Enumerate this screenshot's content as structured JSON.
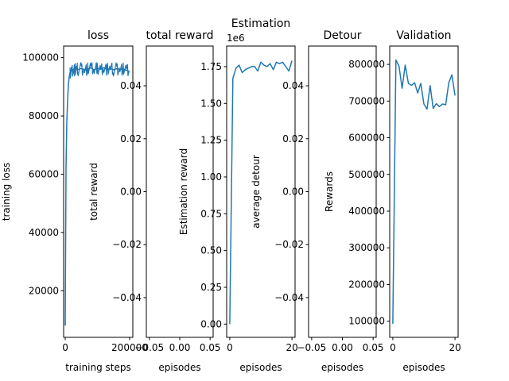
{
  "chart_data": [
    {
      "type": "line",
      "title": "loss",
      "xlabel": "training steps",
      "ylabel": "training loss",
      "xlim": [
        -5000,
        210000
      ],
      "ylim": [
        4000,
        104000
      ],
      "xticks": [
        0,
        200000
      ],
      "xtick_labels": [
        "0",
        "200000"
      ],
      "yticks": [
        20000,
        40000,
        60000,
        80000,
        100000
      ],
      "ytick_labels": [
        "20000",
        "40000",
        "60000",
        "80000",
        "100000"
      ],
      "grid": false,
      "x": [
        0,
        2500,
        5000,
        7500,
        10000,
        12500,
        15000,
        20000,
        25000,
        30000,
        35000,
        40000,
        50000,
        60000,
        70000,
        80000,
        90000,
        100000,
        110000,
        120000,
        130000,
        140000,
        150000,
        160000,
        170000,
        180000,
        190000,
        200000
      ],
      "values": [
        8000,
        62000,
        78000,
        86000,
        91000,
        93500,
        95000,
        95500,
        96000,
        95800,
        96200,
        95900,
        96300,
        95700,
        96100,
        96500,
        95800,
        96400,
        96000,
        96600,
        95900,
        96300,
        95800,
        96200,
        96000,
        96100,
        95700,
        95300
      ]
    },
    {
      "type": "line",
      "title": "total reward",
      "xlabel": "episodes",
      "ylabel": "total reward",
      "xlim": [
        -0.055,
        0.055
      ],
      "ylim": [
        -0.055,
        0.055
      ],
      "xticks": [
        -0.05,
        0.0,
        0.05
      ],
      "xtick_labels": [
        "−0.05",
        "0.00",
        "0.05"
      ],
      "yticks": [
        -0.04,
        -0.02,
        0.0,
        0.02,
        0.04
      ],
      "ytick_labels": [
        "−0.04",
        "−0.02",
        "0.00",
        "0.02",
        "0.04"
      ],
      "grid": false,
      "x": [],
      "values": []
    },
    {
      "type": "line",
      "title": "Estimation",
      "xlabel": "episodes",
      "ylabel": "Estimation reward",
      "offset_label": "1e6",
      "xlim": [
        -1,
        21
      ],
      "ylim": [
        -0.09,
        1.89
      ],
      "xticks": [
        0,
        20
      ],
      "xtick_labels": [
        "0",
        "20"
      ],
      "yticks": [
        0.0,
        0.25,
        0.5,
        0.75,
        1.0,
        1.25,
        1.5,
        1.75
      ],
      "ytick_labels": [
        "0.00",
        "0.25",
        "0.50",
        "0.75",
        "1.00",
        "1.25",
        "1.50",
        "1.75"
      ],
      "grid": false,
      "x": [
        0,
        1,
        2,
        3,
        4,
        5,
        6,
        7,
        8,
        9,
        10,
        11,
        12,
        13,
        14,
        15,
        16,
        17,
        18,
        19,
        20
      ],
      "values": [
        0.0,
        1.67,
        1.74,
        1.76,
        1.71,
        1.73,
        1.74,
        1.75,
        1.75,
        1.72,
        1.78,
        1.76,
        1.75,
        1.77,
        1.73,
        1.78,
        1.77,
        1.78,
        1.75,
        1.72,
        1.79
      ]
    },
    {
      "type": "line",
      "title": "Detour",
      "xlabel": "episodes",
      "ylabel": "average detour",
      "xlim": [
        -0.055,
        0.055
      ],
      "ylim": [
        -0.055,
        0.055
      ],
      "xticks": [
        -0.05,
        0.0,
        0.05
      ],
      "xtick_labels": [
        "−0.05",
        "0.00",
        "0.05"
      ],
      "yticks": [
        -0.04,
        -0.02,
        0.0,
        0.02,
        0.04
      ],
      "ytick_labels": [
        "−0.04",
        "−0.02",
        "0.00",
        "0.02",
        "0.04"
      ],
      "grid": false,
      "x": [],
      "values": []
    },
    {
      "type": "line",
      "title": "Validation",
      "xlabel": "episodes",
      "ylabel": "Rewards",
      "xlim": [
        -1,
        21
      ],
      "ylim": [
        56000,
        850000
      ],
      "xticks": [
        0,
        20
      ],
      "xtick_labels": [
        "0",
        "20"
      ],
      "yticks": [
        100000,
        200000,
        300000,
        400000,
        500000,
        600000,
        700000,
        800000
      ],
      "ytick_labels": [
        "100000",
        "200000",
        "300000",
        "400000",
        "500000",
        "600000",
        "700000",
        "800000"
      ],
      "grid": false,
      "x": [
        0,
        1,
        2,
        3,
        4,
        5,
        6,
        7,
        8,
        9,
        10,
        11,
        12,
        13,
        14,
        15,
        16,
        17,
        18,
        19,
        20
      ],
      "values": [
        93000,
        812000,
        795000,
        735000,
        798000,
        748000,
        743000,
        750000,
        722000,
        748000,
        692000,
        678000,
        742000,
        680000,
        693000,
        685000,
        692000,
        690000,
        750000,
        772000,
        715000
      ]
    }
  ]
}
